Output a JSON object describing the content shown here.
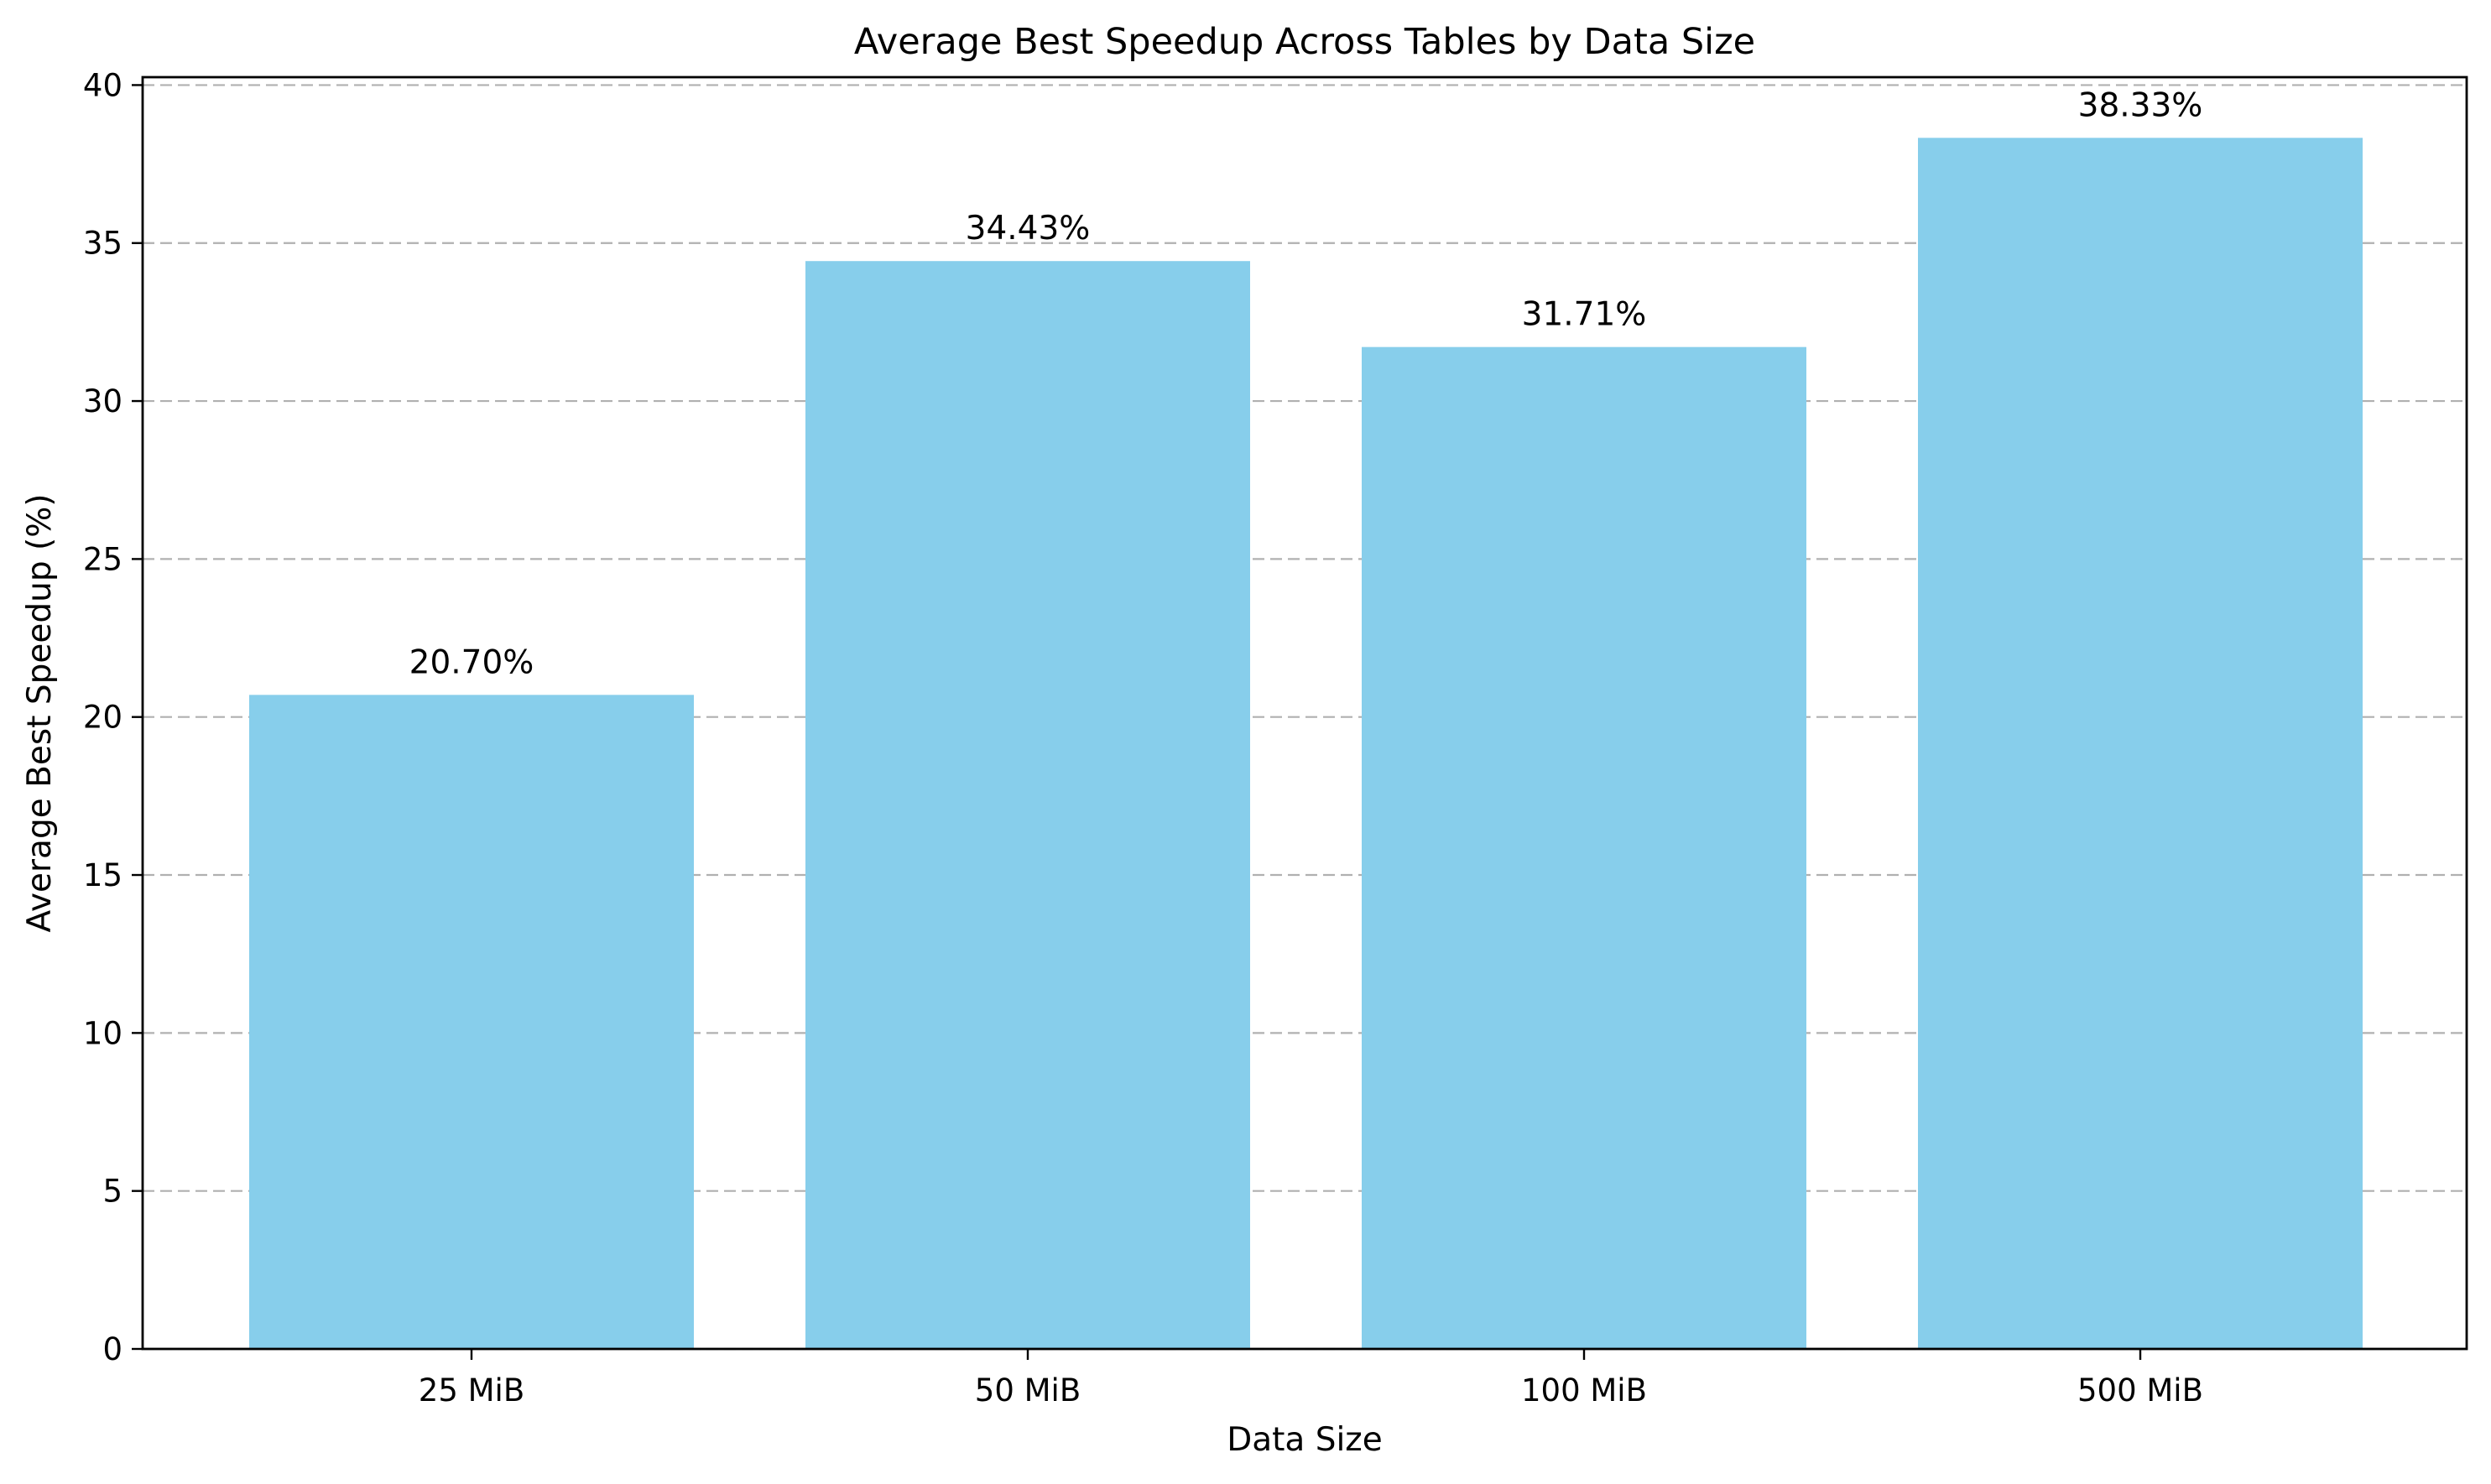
{
  "chart_data": {
    "type": "bar",
    "title": "Average Best Speedup Across Tables by Data Size",
    "xlabel": "Data Size",
    "ylabel": "Average Best Speedup (%)",
    "categories": [
      "25 MiB",
      "50 MiB",
      "100 MiB",
      "500 MiB"
    ],
    "values": [
      20.7,
      34.43,
      31.71,
      38.33
    ],
    "data_labels": [
      "20.70%",
      "34.43%",
      "31.71%",
      "38.33%"
    ],
    "ylim": [
      0,
      40.25
    ],
    "yticks": [
      0,
      5,
      10,
      15,
      20,
      25,
      30,
      35,
      40
    ],
    "bar_color": "#87CEEB",
    "grid": "y-axis dashed",
    "legend": "none"
  }
}
